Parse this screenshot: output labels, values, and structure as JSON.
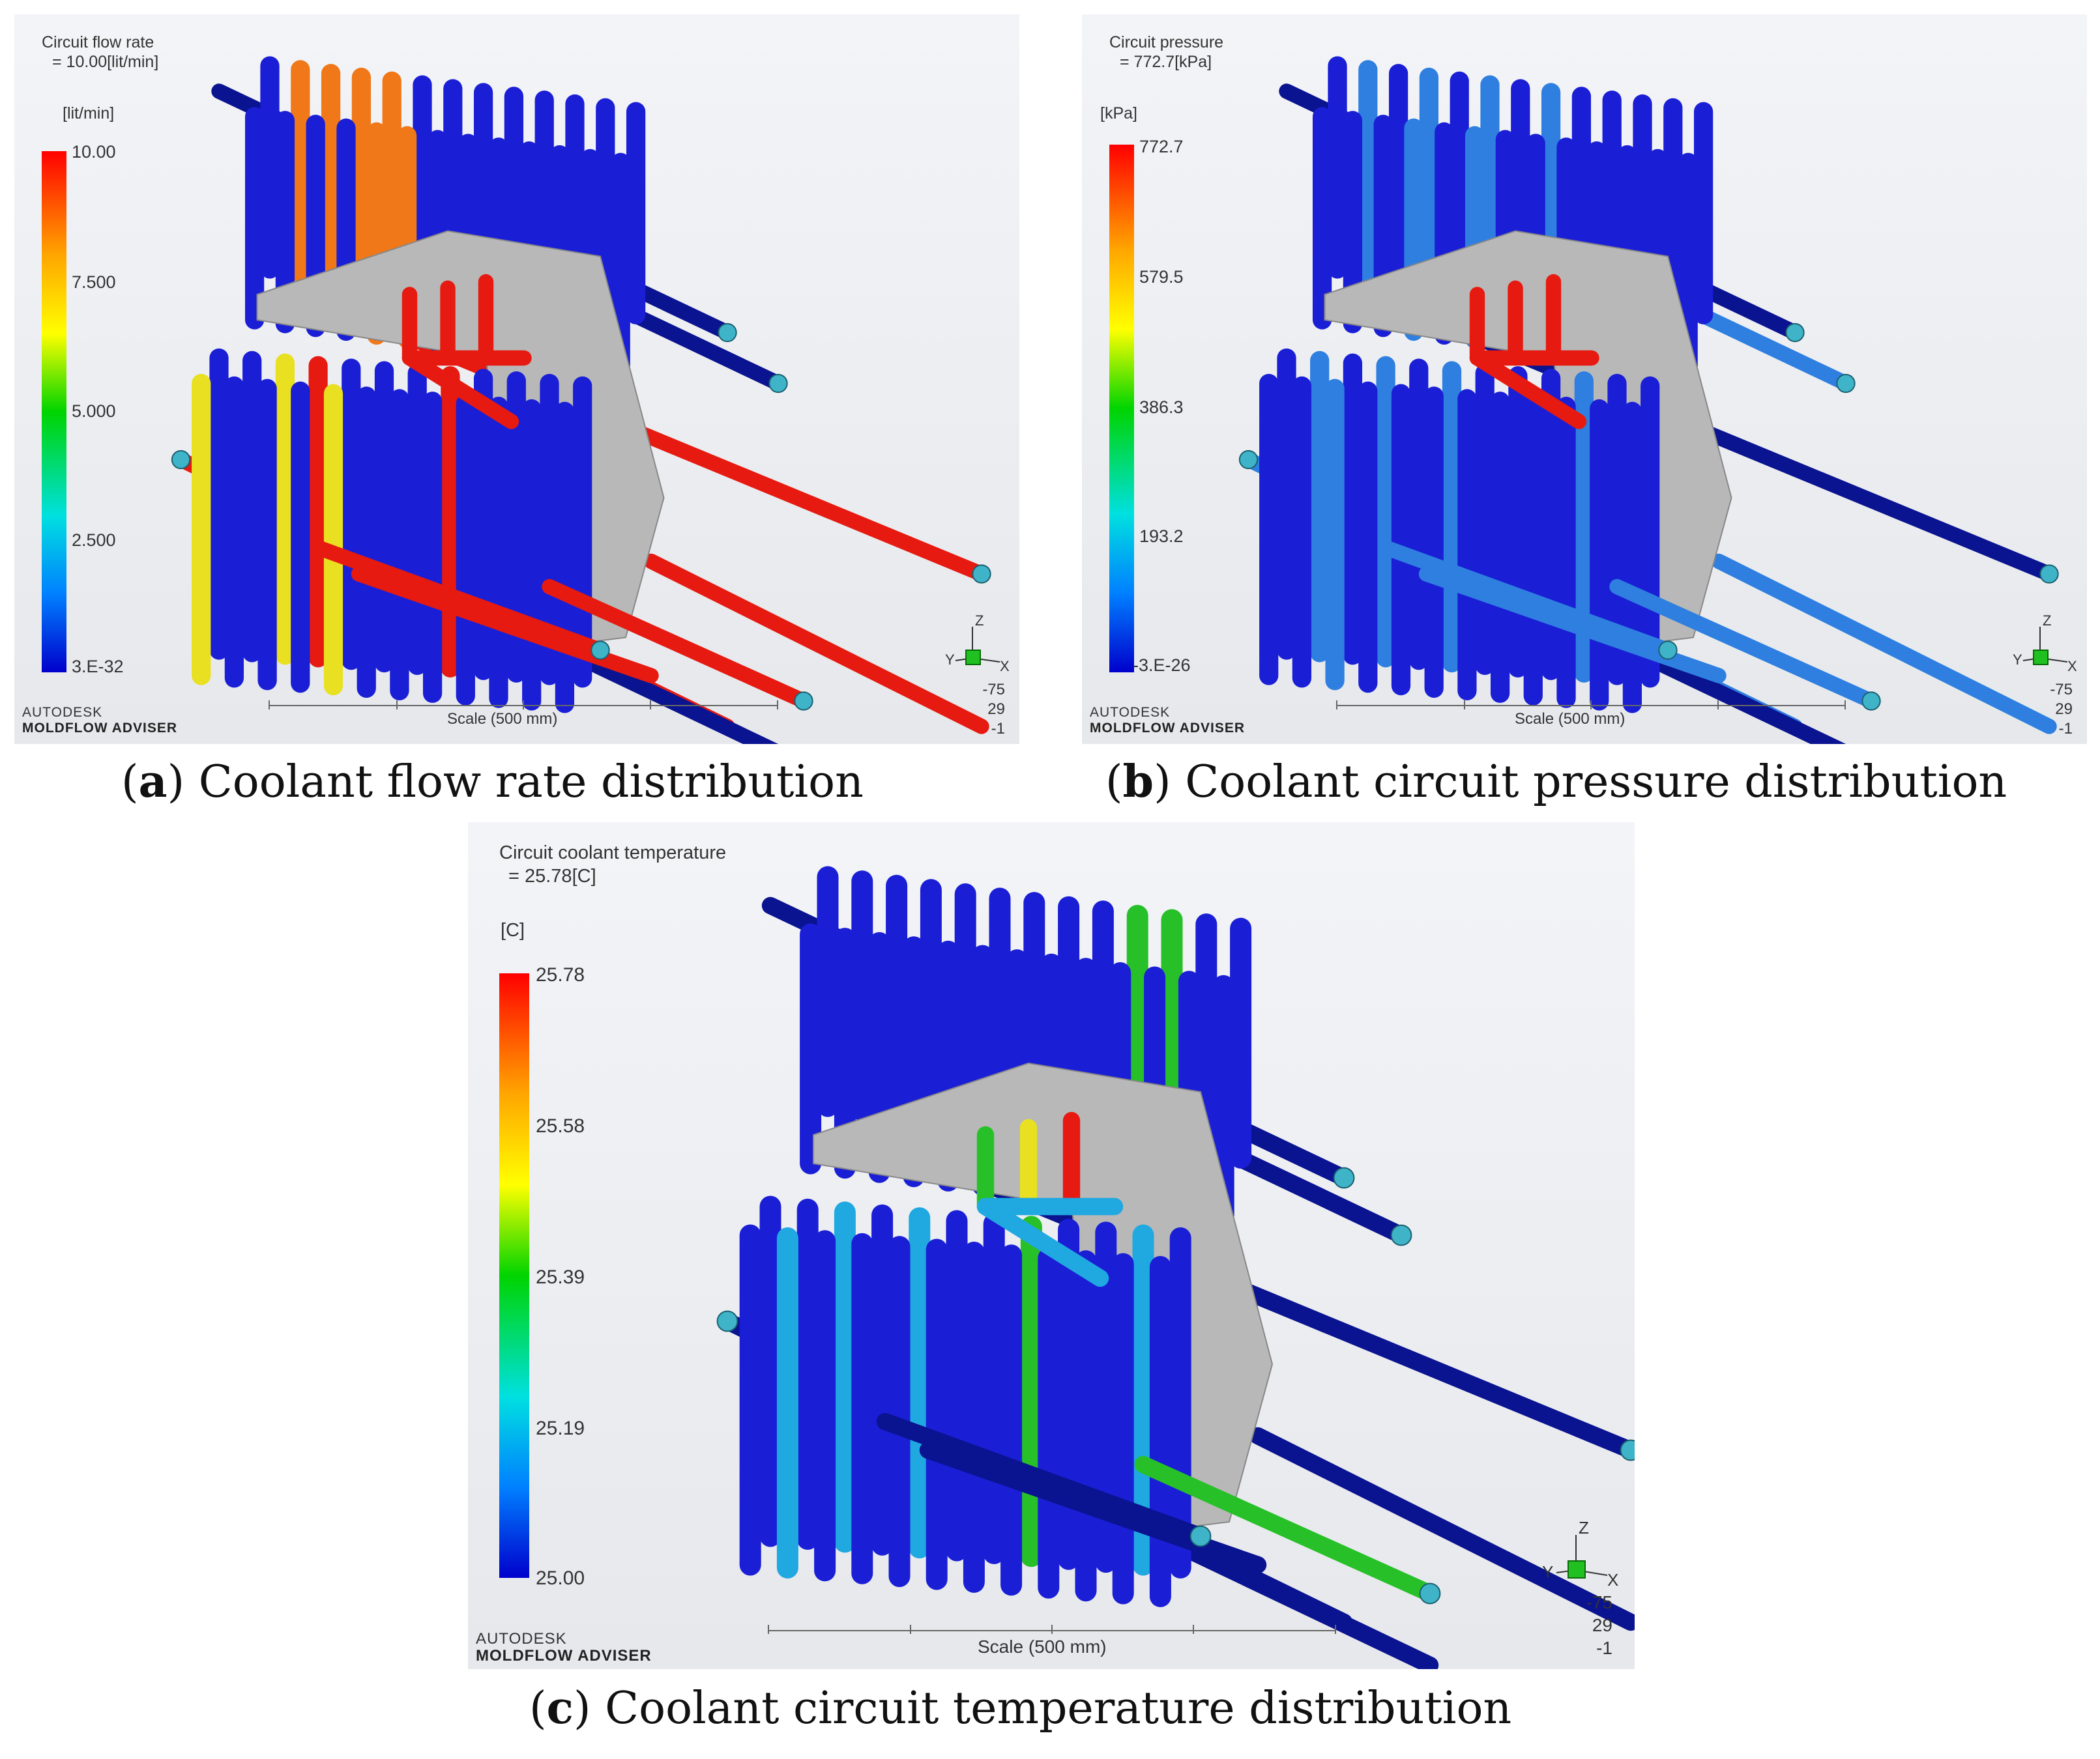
{
  "panels": [
    {
      "id": "a",
      "result_title_line1": "Circuit flow rate",
      "result_title_line2": "= 10.00[lit/min]",
      "unit": "[lit/min]",
      "colorbar_ticks": [
        "10.00",
        "7.500",
        "5.000",
        "2.500",
        "3.E-32"
      ],
      "brand_line1": "AUTODESK",
      "brand_line2": "MOLDFLOW ADVISER",
      "scale_label": "Scale (500 mm)",
      "axis_labels": {
        "z": "Z",
        "y": "Y",
        "x": "X"
      },
      "view_coords": [
        "-75",
        "29",
        "-1"
      ],
      "caption_letter": "a",
      "caption_text": "Coolant flow rate distribution"
    },
    {
      "id": "b",
      "result_title_line1": "Circuit pressure",
      "result_title_line2": "= 772.7[kPa]",
      "unit": "[kPa]",
      "colorbar_ticks": [
        "772.7",
        "579.5",
        "386.3",
        "193.2",
        "-3.E-26"
      ],
      "brand_line1": "AUTODESK",
      "brand_line2": "MOLDFLOW ADVISER",
      "scale_label": "Scale (500 mm)",
      "axis_labels": {
        "z": "Z",
        "y": "Y",
        "x": "X"
      },
      "view_coords": [
        "-75",
        "29",
        "-1"
      ],
      "caption_letter": "b",
      "caption_text": "Coolant circuit pressure distribution"
    },
    {
      "id": "c",
      "result_title_line1": "Circuit coolant temperature",
      "result_title_line2": "= 25.78[C]",
      "unit": "[C]",
      "colorbar_ticks": [
        "25.78",
        "25.58",
        "25.39",
        "25.19",
        "25.00"
      ],
      "brand_line1": "AUTODESK",
      "brand_line2": "MOLDFLOW ADVISER",
      "scale_label": "Scale (500 mm)",
      "axis_labels": {
        "z": "Z",
        "y": "Y",
        "x": "X"
      },
      "view_coords": [
        "-75",
        "29",
        "-1"
      ],
      "caption_letter": "c",
      "caption_text": "Coolant circuit temperature distribution"
    }
  ],
  "colors": {
    "pipe_blue": "#1a1fd6",
    "pipe_dark_blue": "#0a1390",
    "pipe_red": "#e61a10",
    "pipe_orange": "#f07818",
    "pipe_yellow": "#e8e020",
    "pipe_green": "#28c028",
    "pipe_cyan": "#20a8e0",
    "pipe_light_blue": "#2e7fe0",
    "part_gray": "#b8b8b8",
    "inlet_teal": "#3fb4c8"
  }
}
